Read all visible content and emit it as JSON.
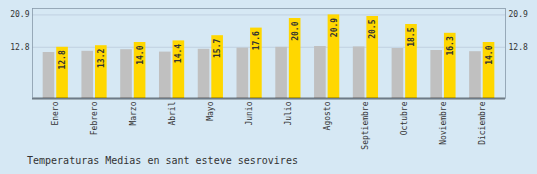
{
  "chart_data": {
    "type": "bar",
    "title": "Temperaturas Medias en sant esteve sesrovires",
    "categories": [
      "Enero",
      "Febrero",
      "Marzo",
      "Abril",
      "Mayo",
      "Junio",
      "Julio",
      "Agosto",
      "Septiembre",
      "Octubre",
      "Noviembre",
      "Diciembre"
    ],
    "series": [
      {
        "color": "#C0C0C0",
        "values": [
          11.5,
          11.8,
          12.2,
          11.6,
          12.3,
          12.6,
          12.8,
          13.0,
          12.9,
          12.5,
          12.0,
          11.7
        ]
      },
      {
        "color": "#FFD700",
        "values": [
          12.8,
          13.2,
          14.0,
          14.4,
          15.7,
          17.6,
          20.0,
          20.9,
          20.5,
          18.5,
          16.3,
          14.0
        ],
        "value_labels": [
          "12.8",
          "13.2",
          "14.0",
          "14.4",
          "15.7",
          "17.6",
          "20.0",
          "20.9",
          "20.5",
          "18.5",
          "16.3",
          "14.0"
        ],
        "data_labels": true
      }
    ],
    "ylim": [
      0,
      22.5
    ],
    "yticks": [
      12.8,
      20.9
    ],
    "grid": true
  }
}
